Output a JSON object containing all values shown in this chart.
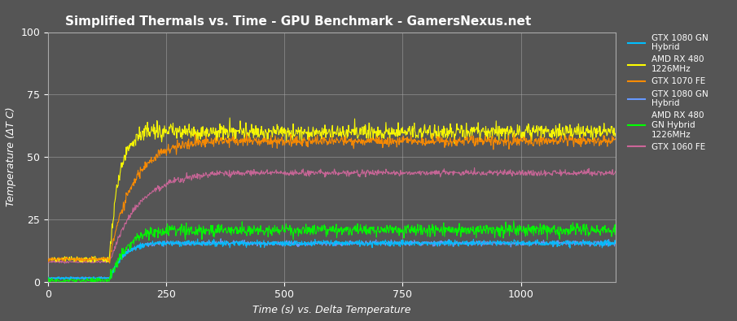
{
  "title": "Simplified Thermals vs. Time - GPU Benchmark - GamersNexus.net",
  "xlabel": "Time (s) vs. Delta Temperature",
  "ylabel": "Temperature (ΔT C)",
  "xlim": [
    0,
    1200
  ],
  "ylim": [
    0,
    100
  ],
  "xticks": [
    0,
    250,
    500,
    750,
    1000
  ],
  "yticks": [
    0,
    25,
    50,
    75,
    100
  ],
  "background_color": "#555555",
  "grid_color": "#aaaaaa",
  "text_color": "#ffffff",
  "figsize": [
    9.05,
    3.95
  ],
  "dpi": 100,
  "series": [
    {
      "label": "GTX 1080 GN\nHybrid",
      "color": "#00bfff",
      "steady": 16,
      "rise_start": 130,
      "rise_end": 230,
      "start_val": 1.5,
      "noise": 0.6,
      "tau": 30,
      "zorder": 4
    },
    {
      "label": "AMD RX 480\n1226MHz",
      "color": "#ffff00",
      "steady": 61,
      "rise_start": 130,
      "rise_end": 210,
      "start_val": 9,
      "noise": 1.5,
      "tau": 20,
      "zorder": 5
    },
    {
      "label": "GTX 1070 FE",
      "color": "#ff8c00",
      "steady": 57,
      "rise_start": 130,
      "rise_end": 350,
      "start_val": 9,
      "noise": 1.0,
      "tau": 50,
      "zorder": 5
    },
    {
      "label": "GTX 1080 GN\nHybrid",
      "color": "#6699ff",
      "steady": 16,
      "rise_start": 130,
      "rise_end": 230,
      "start_val": 1.5,
      "noise": 0.5,
      "tau": 30,
      "zorder": 3
    },
    {
      "label": "AMD RX 480\nGN Hybrid\n1226MHz",
      "color": "#00ff00",
      "steady": 21,
      "rise_start": 130,
      "rise_end": 280,
      "start_val": 0.5,
      "noise": 1.2,
      "tau": 35,
      "zorder": 4
    },
    {
      "label": "GTX 1060 FE",
      "color": "#cc6699",
      "steady": 44,
      "rise_start": 130,
      "rise_end": 400,
      "start_val": 8,
      "noise": 0.6,
      "tau": 60,
      "zorder": 3
    }
  ]
}
